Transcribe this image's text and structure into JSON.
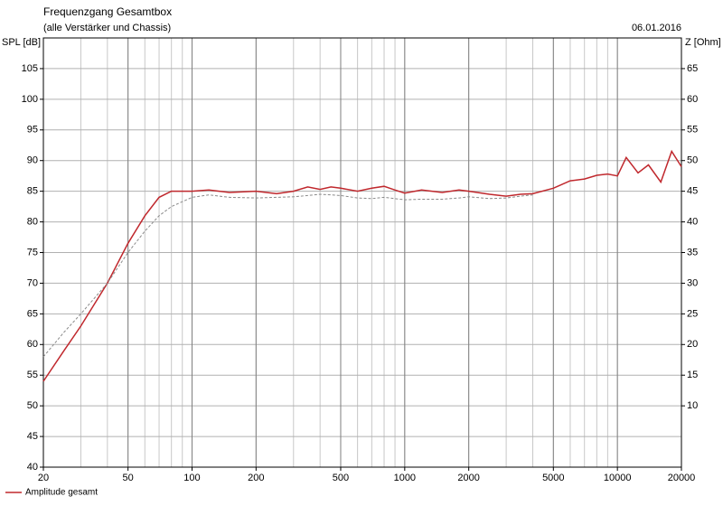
{
  "chart_data": {
    "type": "line",
    "title": "Frequenzgang Gesamtbox",
    "subtitle": "(alle Verstärker und Chassis)",
    "date": "06.01.2016",
    "ylabel": "SPL [dB]",
    "y2label": "Z [Ohm]",
    "log_x": true,
    "grid": true,
    "x": [
      20,
      25,
      30,
      40,
      50,
      60,
      70,
      80,
      100,
      120,
      150,
      200,
      250,
      300,
      350,
      400,
      450,
      500,
      600,
      700,
      800,
      900,
      1000,
      1200,
      1500,
      1800,
      2000,
      2500,
      3000,
      3500,
      4000,
      5000,
      6000,
      7000,
      8000,
      9000,
      10000,
      11000,
      12500,
      14000,
      16000,
      18000,
      20000
    ],
    "series": [
      {
        "name": "Amplitude gesamt",
        "color": "#c0282d",
        "dashed": false,
        "values": [
          54,
          59,
          63,
          70,
          76.5,
          81,
          84,
          85,
          85,
          85.2,
          84.8,
          85,
          84.6,
          85,
          85.7,
          85.3,
          85.7,
          85.5,
          85,
          85.5,
          85.8,
          85.2,
          84.7,
          85.2,
          84.8,
          85.2,
          85,
          84.5,
          84.2,
          84.5,
          84.6,
          85.5,
          86.7,
          87,
          87.6,
          87.8,
          87.5,
          90.5,
          88,
          89.3,
          86.5,
          91.5,
          89
        ]
      },
      {
        "color": "#8a8a8a",
        "dashed": true,
        "values": [
          58,
          62,
          65,
          70,
          75,
          78.5,
          81,
          82.5,
          84,
          84.4,
          84,
          83.9,
          84,
          84.1,
          84.3,
          84.5,
          84.4,
          84.3,
          83.9,
          83.8,
          84,
          83.8,
          83.6,
          83.7,
          83.7,
          83.9,
          84.1,
          83.8,
          83.9,
          84.2,
          84.4,
          null,
          null,
          null,
          null,
          null,
          null,
          null,
          null,
          null,
          null,
          null,
          null
        ]
      }
    ],
    "xlim": [
      20,
      20000
    ],
    "xticks": [
      20,
      50,
      100,
      200,
      500,
      1000,
      2000,
      5000,
      10000,
      20000
    ],
    "ylim": [
      40,
      110
    ],
    "yticks": [
      40,
      45,
      50,
      55,
      60,
      65,
      70,
      75,
      80,
      85,
      90,
      95,
      100,
      105
    ],
    "y2lim": [
      0,
      70
    ],
    "y2ticks": [
      10,
      15,
      20,
      25,
      30,
      35,
      40,
      45,
      50,
      55,
      60,
      65
    ]
  }
}
